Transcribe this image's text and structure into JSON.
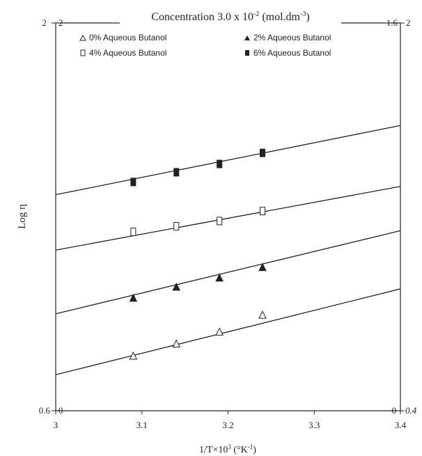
{
  "chart_data": {
    "type": "scatter",
    "title": "Concentration 3.0 x 10",
    "title_exponent": "-2",
    "title_unit": "(mol.dm",
    "title_unit_exponent": "-3",
    "title_unit_close": ")",
    "xlabel": "1/T×10",
    "xlabel_exponent": "3",
    "xlabel_unit": "(°K",
    "xlabel_unit_exponent": "-1",
    "xlabel_unit_close": ")",
    "ylabel": "Log η",
    "xlim": [
      3.0,
      3.4
    ],
    "ylim": [
      0.6,
      2.0
    ],
    "x_ticks": [
      3.0,
      3.1,
      3.2,
      3.3,
      3.4
    ],
    "x_tick_labels": [
      "3",
      "3.1",
      "3.2",
      "3.3",
      "3.4"
    ],
    "left_axis_labels": {
      "outer_top": "2",
      "inner_top": "2",
      "outer_bottom": "0.6",
      "inner_bottom": "0"
    },
    "right_axis_labels": {
      "inner_top": "1.6",
      "outer_top": "2",
      "inner_bottom": "0",
      "outer_bottom": "0.4"
    },
    "grid": false,
    "legend_position": "top",
    "series": [
      {
        "name": "0% Aqueous Butanol",
        "marker": "open-triangle",
        "x": [
          3.09,
          3.14,
          3.19,
          3.24
        ],
        "y": [
          0.796,
          0.84,
          0.883,
          0.944
        ],
        "fit_line": [
          [
            3.0,
            0.73
          ],
          [
            3.4,
            1.04
          ]
        ]
      },
      {
        "name": "2% Aqueous Butanol",
        "marker": "filled-triangle",
        "x": [
          3.09,
          3.14,
          3.19,
          3.24
        ],
        "y": [
          1.005,
          1.045,
          1.078,
          1.116
        ],
        "fit_line": [
          [
            3.0,
            0.95
          ],
          [
            3.4,
            1.25
          ]
        ]
      },
      {
        "name": "4% Aqueous Butanol",
        "marker": "open-square",
        "x": [
          3.09,
          3.14,
          3.19,
          3.24
        ],
        "y": [
          1.246,
          1.266,
          1.285,
          1.321
        ],
        "fit_line": [
          [
            3.0,
            1.18
          ],
          [
            3.4,
            1.41
          ]
        ]
      },
      {
        "name": "6% Aqueous Butanol",
        "marker": "filled-square",
        "x": [
          3.09,
          3.14,
          3.19,
          3.24
        ],
        "y": [
          1.426,
          1.461,
          1.491,
          1.531
        ],
        "fit_line": [
          [
            3.0,
            1.38
          ],
          [
            3.4,
            1.63
          ]
        ]
      }
    ]
  }
}
